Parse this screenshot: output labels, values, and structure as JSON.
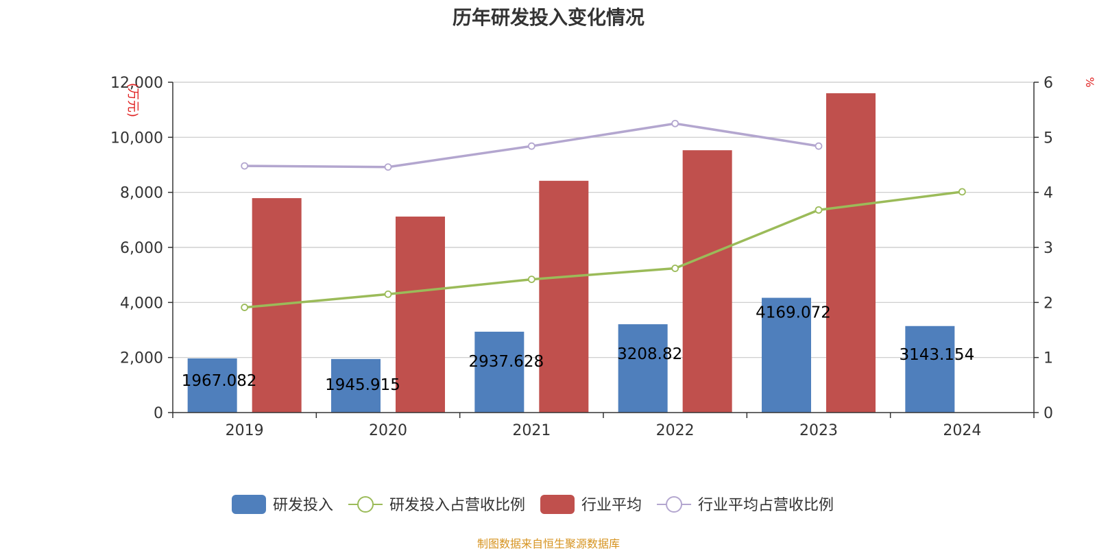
{
  "chart_data": {
    "type": "bar",
    "title": "历年研发投入变化情况",
    "source": "制图数据来自恒生聚源数据库",
    "categories": [
      "2019",
      "2020",
      "2021",
      "2022",
      "2023",
      "2024"
    ],
    "y_left": {
      "label": "万元",
      "ylim": [
        0,
        12000
      ],
      "ticks": [
        "0",
        "2,000",
        "4,000",
        "6,000",
        "8,000",
        "10,000",
        "12,000"
      ],
      "tick_values": [
        0,
        2000,
        4000,
        6000,
        8000,
        10000,
        12000
      ]
    },
    "y_right": {
      "label": "%",
      "ylim": [
        0,
        6
      ],
      "ticks": [
        "0",
        "1",
        "2",
        "3",
        "4",
        "5",
        "6"
      ],
      "tick_values": [
        0,
        1,
        2,
        3,
        4,
        5,
        6
      ]
    },
    "grid": true,
    "legend_position": "bottom",
    "series": [
      {
        "name": "研发投入",
        "type": "bar",
        "axis": "left",
        "color": "#4f7fbc",
        "values": [
          1967.082,
          1945.915,
          2937.628,
          3208.82,
          4169.072,
          3143.154
        ],
        "labels": [
          "1967.082",
          "1945.915",
          "2937.628",
          "3208.82",
          "4169.072",
          "3143.154"
        ]
      },
      {
        "name": "研发投入占营收比例",
        "type": "line",
        "axis": "right",
        "color": "#9bbb59",
        "values": [
          1.91,
          2.15,
          2.42,
          2.62,
          3.68,
          4.01
        ]
      },
      {
        "name": "行业平均",
        "type": "bar",
        "axis": "left",
        "color": "#c0504d",
        "values": [
          7790,
          7120,
          8420,
          9530,
          11600,
          null
        ]
      },
      {
        "name": "行业平均占营收比例",
        "type": "line",
        "axis": "right",
        "color": "#b3a6cf",
        "values": [
          4.48,
          4.46,
          4.84,
          5.25,
          4.84,
          null
        ]
      }
    ]
  }
}
